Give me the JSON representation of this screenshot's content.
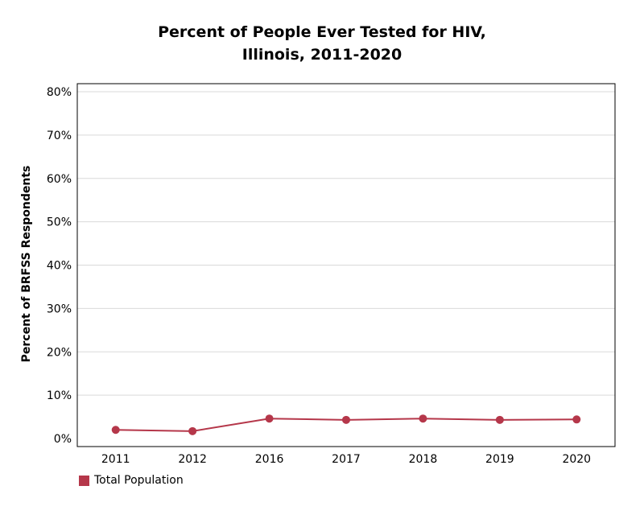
{
  "chart_data": {
    "type": "line",
    "title_line1": "Percent of People Ever Tested for HIV,",
    "title_line2": "Illinois, 2011-2020",
    "xlabel": "",
    "ylabel": "Percent of BRFSS Respondents",
    "ylim": [
      0,
      80
    ],
    "y_tick_labels": [
      "0%",
      "10%",
      "20%",
      "30%",
      "40%",
      "50%",
      "60%",
      "70%",
      "80%"
    ],
    "categories": [
      "2011",
      "2012",
      "2016",
      "2017",
      "2018",
      "2019",
      "2020"
    ],
    "series": [
      {
        "name": "Total Population",
        "color": "#b5374a",
        "values": [
          2.0,
          1.7,
          4.6,
          4.3,
          4.6,
          4.3,
          4.4
        ]
      }
    ],
    "grid": true,
    "legend_position": "bottom-left"
  }
}
